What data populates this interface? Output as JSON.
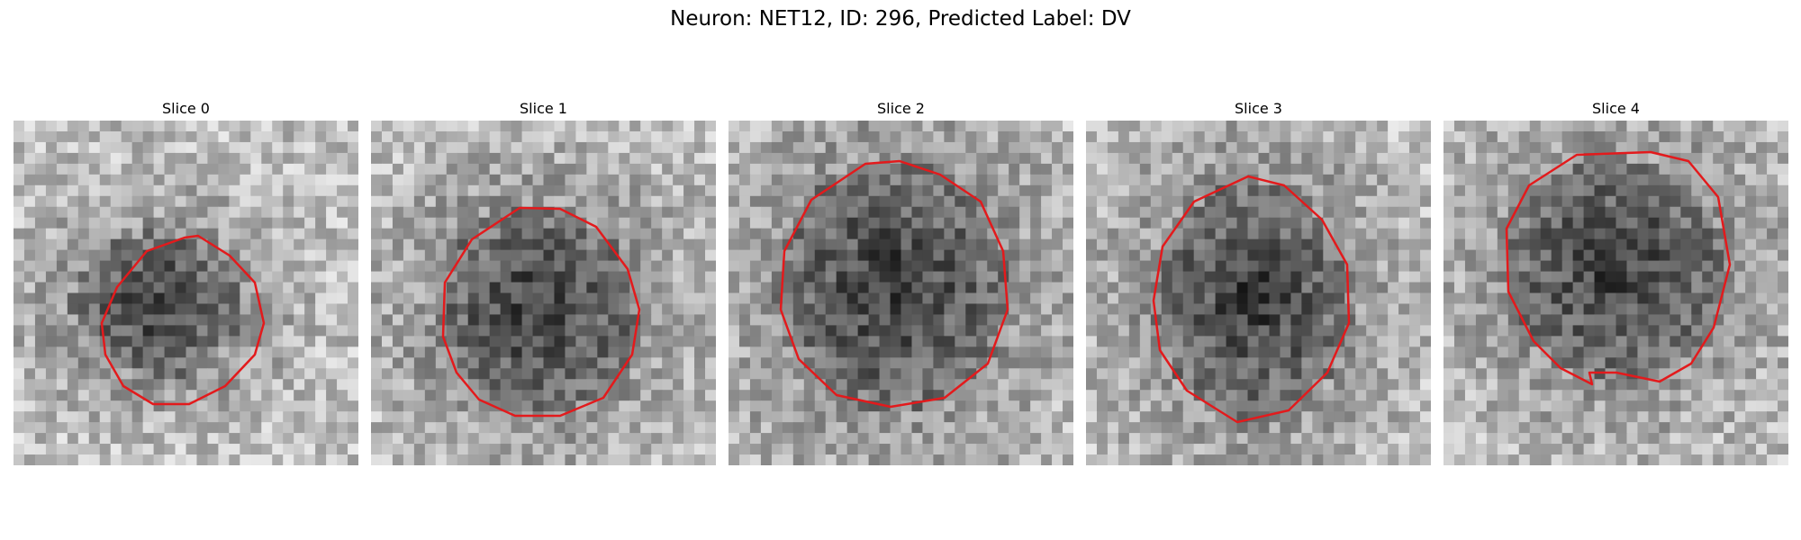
{
  "figure": {
    "title": "Neuron: NET12, ID: 296, Predicted Label: DV"
  },
  "panels": [
    {
      "title": "Slice 0"
    },
    {
      "title": "Slice 1"
    },
    {
      "title": "Slice 2"
    },
    {
      "title": "Slice 3"
    },
    {
      "title": "Slice 4"
    }
  ],
  "colors": {
    "contour": "#e31a1c",
    "background": "#ffffff"
  }
}
